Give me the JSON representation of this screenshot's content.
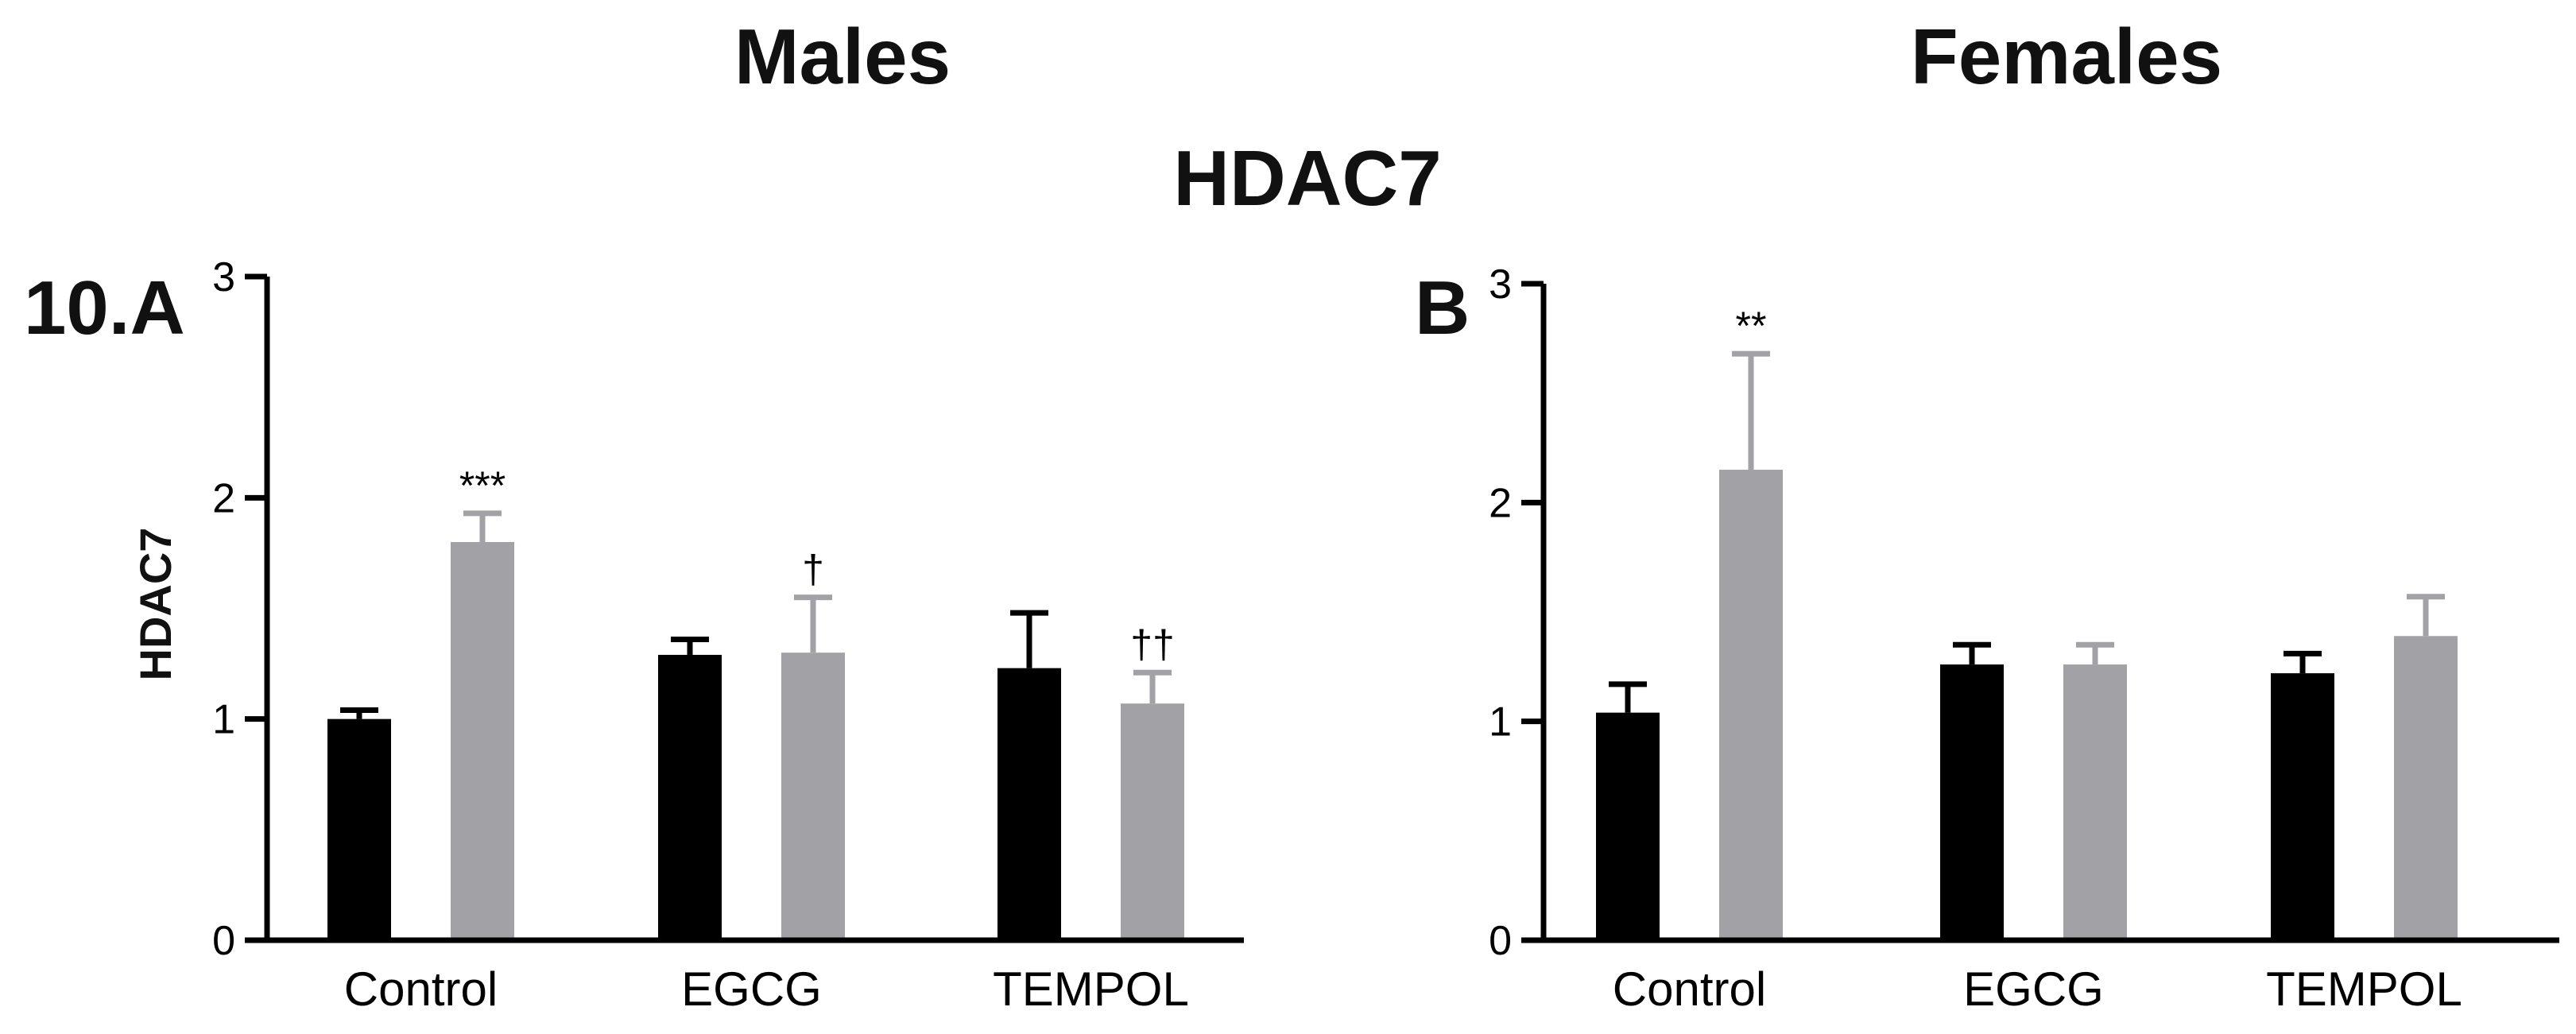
{
  "figure": {
    "heading": "HDAC7",
    "males_header": "Males",
    "females_header": "Females",
    "ylabel": "HDAC7"
  },
  "colors": {
    "series_black": "#000000",
    "series_gray": "#a2a2a6",
    "axis": "#000000"
  },
  "chart_data": [
    {
      "type": "bar",
      "panel_label": "10.A",
      "title": "Males",
      "ylabel": "HDAC7",
      "xlabel": "",
      "ylim": [
        0,
        3
      ],
      "yticks": [
        "0",
        "1",
        "2",
        "3"
      ],
      "categories": [
        "Control",
        "EGCG",
        "TEMPOL"
      ],
      "series": [
        {
          "name": "black",
          "values": [
            1.0,
            1.29,
            1.23
          ],
          "errors": [
            0.04,
            0.07,
            0.25
          ]
        },
        {
          "name": "gray",
          "values": [
            1.8,
            1.3,
            1.07
          ],
          "errors": [
            0.13,
            0.25,
            0.14
          ]
        }
      ],
      "annotations": [
        {
          "category": 0,
          "series": 1,
          "text": "***"
        },
        {
          "category": 1,
          "series": 1,
          "text": "†"
        },
        {
          "category": 2,
          "series": 1,
          "text": "††"
        }
      ]
    },
    {
      "type": "bar",
      "panel_label": "B",
      "title": "Females",
      "ylabel": "",
      "xlabel": "",
      "ylim": [
        0,
        3
      ],
      "yticks": [
        "0",
        "1",
        "2",
        "3"
      ],
      "categories": [
        "Control",
        "EGCG",
        "TEMPOL"
      ],
      "series": [
        {
          "name": "black",
          "values": [
            1.04,
            1.26,
            1.22
          ],
          "errors": [
            0.13,
            0.09,
            0.09
          ]
        },
        {
          "name": "gray",
          "values": [
            2.15,
            1.26,
            1.39
          ],
          "errors": [
            0.53,
            0.09,
            0.18
          ]
        }
      ],
      "annotations": [
        {
          "category": 0,
          "series": 1,
          "text": "**"
        }
      ]
    }
  ]
}
